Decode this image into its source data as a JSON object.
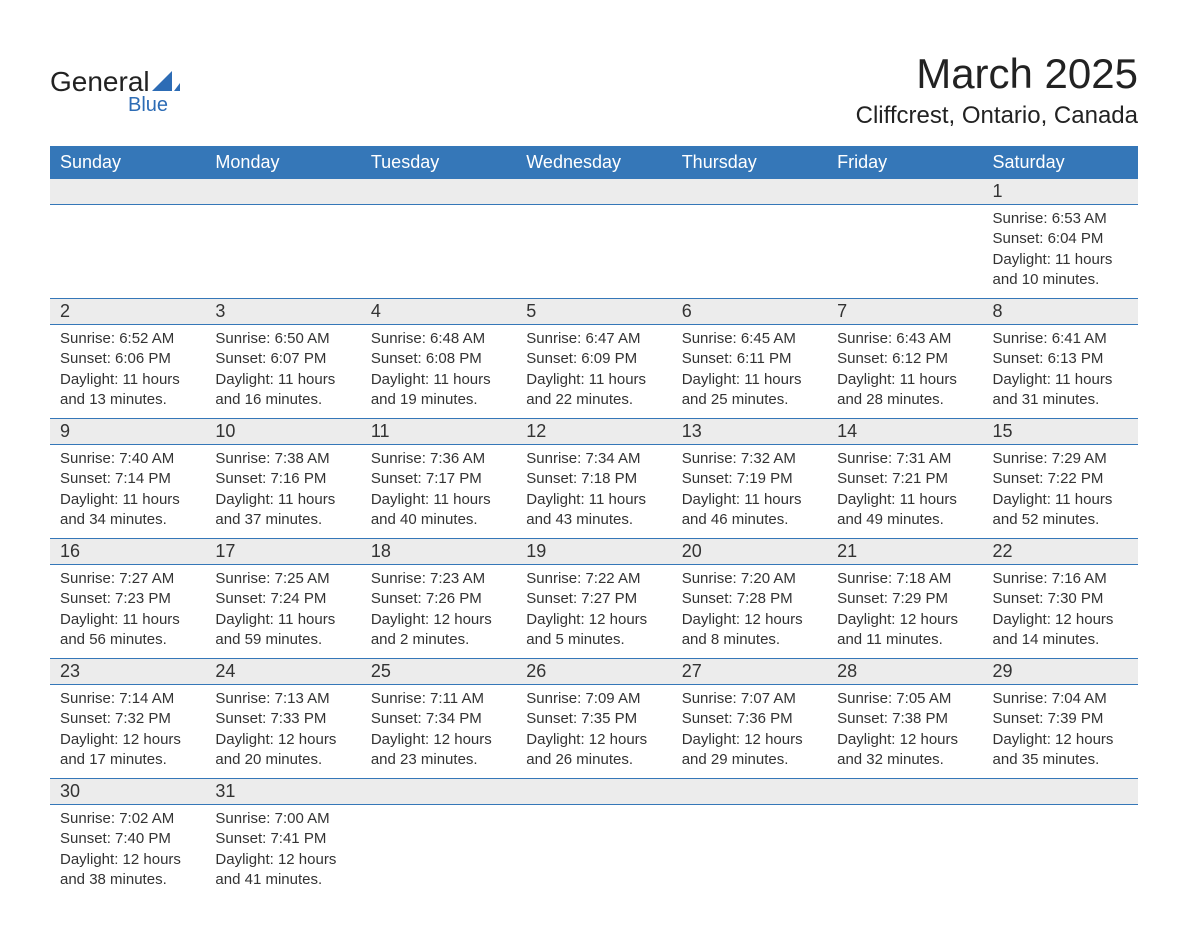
{
  "logo": {
    "primary": "General",
    "secondary": "Blue"
  },
  "title": "March 2025",
  "location": "Cliffcrest, Ontario, Canada",
  "colors": {
    "header_bg": "#3577b8",
    "header_text": "#ffffff",
    "daynum_bg": "#ececec",
    "row_border": "#3577b8",
    "text": "#333333",
    "logo_blue": "#2d6cb5"
  },
  "day_labels": [
    "Sunday",
    "Monday",
    "Tuesday",
    "Wednesday",
    "Thursday",
    "Friday",
    "Saturday"
  ],
  "weeks": [
    {
      "nums": [
        "",
        "",
        "",
        "",
        "",
        "",
        "1"
      ],
      "cells": [
        null,
        null,
        null,
        null,
        null,
        null,
        {
          "sunrise": "Sunrise: 6:53 AM",
          "sunset": "Sunset: 6:04 PM",
          "day1": "Daylight: 11 hours",
          "day2": "and 10 minutes."
        }
      ]
    },
    {
      "nums": [
        "2",
        "3",
        "4",
        "5",
        "6",
        "7",
        "8"
      ],
      "cells": [
        {
          "sunrise": "Sunrise: 6:52 AM",
          "sunset": "Sunset: 6:06 PM",
          "day1": "Daylight: 11 hours",
          "day2": "and 13 minutes."
        },
        {
          "sunrise": "Sunrise: 6:50 AM",
          "sunset": "Sunset: 6:07 PM",
          "day1": "Daylight: 11 hours",
          "day2": "and 16 minutes."
        },
        {
          "sunrise": "Sunrise: 6:48 AM",
          "sunset": "Sunset: 6:08 PM",
          "day1": "Daylight: 11 hours",
          "day2": "and 19 minutes."
        },
        {
          "sunrise": "Sunrise: 6:47 AM",
          "sunset": "Sunset: 6:09 PM",
          "day1": "Daylight: 11 hours",
          "day2": "and 22 minutes."
        },
        {
          "sunrise": "Sunrise: 6:45 AM",
          "sunset": "Sunset: 6:11 PM",
          "day1": "Daylight: 11 hours",
          "day2": "and 25 minutes."
        },
        {
          "sunrise": "Sunrise: 6:43 AM",
          "sunset": "Sunset: 6:12 PM",
          "day1": "Daylight: 11 hours",
          "day2": "and 28 minutes."
        },
        {
          "sunrise": "Sunrise: 6:41 AM",
          "sunset": "Sunset: 6:13 PM",
          "day1": "Daylight: 11 hours",
          "day2": "and 31 minutes."
        }
      ]
    },
    {
      "nums": [
        "9",
        "10",
        "11",
        "12",
        "13",
        "14",
        "15"
      ],
      "cells": [
        {
          "sunrise": "Sunrise: 7:40 AM",
          "sunset": "Sunset: 7:14 PM",
          "day1": "Daylight: 11 hours",
          "day2": "and 34 minutes."
        },
        {
          "sunrise": "Sunrise: 7:38 AM",
          "sunset": "Sunset: 7:16 PM",
          "day1": "Daylight: 11 hours",
          "day2": "and 37 minutes."
        },
        {
          "sunrise": "Sunrise: 7:36 AM",
          "sunset": "Sunset: 7:17 PM",
          "day1": "Daylight: 11 hours",
          "day2": "and 40 minutes."
        },
        {
          "sunrise": "Sunrise: 7:34 AM",
          "sunset": "Sunset: 7:18 PM",
          "day1": "Daylight: 11 hours",
          "day2": "and 43 minutes."
        },
        {
          "sunrise": "Sunrise: 7:32 AM",
          "sunset": "Sunset: 7:19 PM",
          "day1": "Daylight: 11 hours",
          "day2": "and 46 minutes."
        },
        {
          "sunrise": "Sunrise: 7:31 AM",
          "sunset": "Sunset: 7:21 PM",
          "day1": "Daylight: 11 hours",
          "day2": "and 49 minutes."
        },
        {
          "sunrise": "Sunrise: 7:29 AM",
          "sunset": "Sunset: 7:22 PM",
          "day1": "Daylight: 11 hours",
          "day2": "and 52 minutes."
        }
      ]
    },
    {
      "nums": [
        "16",
        "17",
        "18",
        "19",
        "20",
        "21",
        "22"
      ],
      "cells": [
        {
          "sunrise": "Sunrise: 7:27 AM",
          "sunset": "Sunset: 7:23 PM",
          "day1": "Daylight: 11 hours",
          "day2": "and 56 minutes."
        },
        {
          "sunrise": "Sunrise: 7:25 AM",
          "sunset": "Sunset: 7:24 PM",
          "day1": "Daylight: 11 hours",
          "day2": "and 59 minutes."
        },
        {
          "sunrise": "Sunrise: 7:23 AM",
          "sunset": "Sunset: 7:26 PM",
          "day1": "Daylight: 12 hours",
          "day2": "and 2 minutes."
        },
        {
          "sunrise": "Sunrise: 7:22 AM",
          "sunset": "Sunset: 7:27 PM",
          "day1": "Daylight: 12 hours",
          "day2": "and 5 minutes."
        },
        {
          "sunrise": "Sunrise: 7:20 AM",
          "sunset": "Sunset: 7:28 PM",
          "day1": "Daylight: 12 hours",
          "day2": "and 8 minutes."
        },
        {
          "sunrise": "Sunrise: 7:18 AM",
          "sunset": "Sunset: 7:29 PM",
          "day1": "Daylight: 12 hours",
          "day2": "and 11 minutes."
        },
        {
          "sunrise": "Sunrise: 7:16 AM",
          "sunset": "Sunset: 7:30 PM",
          "day1": "Daylight: 12 hours",
          "day2": "and 14 minutes."
        }
      ]
    },
    {
      "nums": [
        "23",
        "24",
        "25",
        "26",
        "27",
        "28",
        "29"
      ],
      "cells": [
        {
          "sunrise": "Sunrise: 7:14 AM",
          "sunset": "Sunset: 7:32 PM",
          "day1": "Daylight: 12 hours",
          "day2": "and 17 minutes."
        },
        {
          "sunrise": "Sunrise: 7:13 AM",
          "sunset": "Sunset: 7:33 PM",
          "day1": "Daylight: 12 hours",
          "day2": "and 20 minutes."
        },
        {
          "sunrise": "Sunrise: 7:11 AM",
          "sunset": "Sunset: 7:34 PM",
          "day1": "Daylight: 12 hours",
          "day2": "and 23 minutes."
        },
        {
          "sunrise": "Sunrise: 7:09 AM",
          "sunset": "Sunset: 7:35 PM",
          "day1": "Daylight: 12 hours",
          "day2": "and 26 minutes."
        },
        {
          "sunrise": "Sunrise: 7:07 AM",
          "sunset": "Sunset: 7:36 PM",
          "day1": "Daylight: 12 hours",
          "day2": "and 29 minutes."
        },
        {
          "sunrise": "Sunrise: 7:05 AM",
          "sunset": "Sunset: 7:38 PM",
          "day1": "Daylight: 12 hours",
          "day2": "and 32 minutes."
        },
        {
          "sunrise": "Sunrise: 7:04 AM",
          "sunset": "Sunset: 7:39 PM",
          "day1": "Daylight: 12 hours",
          "day2": "and 35 minutes."
        }
      ]
    },
    {
      "nums": [
        "30",
        "31",
        "",
        "",
        "",
        "",
        ""
      ],
      "cells": [
        {
          "sunrise": "Sunrise: 7:02 AM",
          "sunset": "Sunset: 7:40 PM",
          "day1": "Daylight: 12 hours",
          "day2": "and 38 minutes."
        },
        {
          "sunrise": "Sunrise: 7:00 AM",
          "sunset": "Sunset: 7:41 PM",
          "day1": "Daylight: 12 hours",
          "day2": "and 41 minutes."
        },
        null,
        null,
        null,
        null,
        null
      ]
    }
  ]
}
